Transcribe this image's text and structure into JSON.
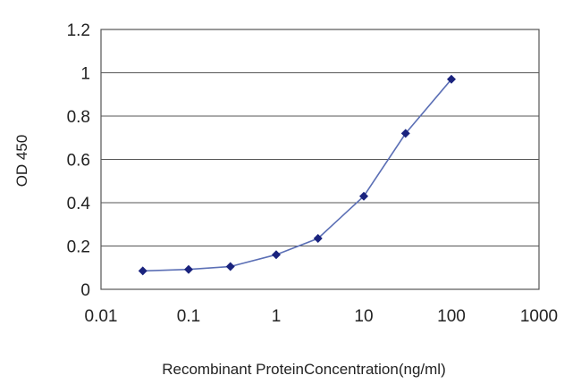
{
  "chart_data": {
    "type": "line",
    "xlabel": "Recombinant ProteinConcentration(ng/ml)",
    "ylabel": "OD 450",
    "x_scale": "log",
    "xlim": [
      0.01,
      1000
    ],
    "ylim": [
      0,
      1.2
    ],
    "x_ticks": [
      0.01,
      0.1,
      1,
      10,
      100,
      1000
    ],
    "x_tick_labels": [
      "0.01",
      "0.1",
      "1",
      "10",
      "100",
      "1000"
    ],
    "y_ticks": [
      0,
      0.2,
      0.4,
      0.6,
      0.8,
      1,
      1.2
    ],
    "y_tick_labels": [
      "0",
      "0.2",
      "0.4",
      "0.6",
      "0.8",
      "1",
      "1.2"
    ],
    "grid": "horizontal",
    "series": [
      {
        "x": [
          0.03,
          0.1,
          0.3,
          1,
          3,
          10,
          30,
          100
        ],
        "y": [
          0.085,
          0.092,
          0.105,
          0.16,
          0.235,
          0.43,
          0.72,
          0.97
        ]
      }
    ],
    "colors": {
      "line": "#5b6fb5",
      "marker": "#1a237e",
      "plot_bg": "#ffffff",
      "grid": "#555555"
    }
  }
}
